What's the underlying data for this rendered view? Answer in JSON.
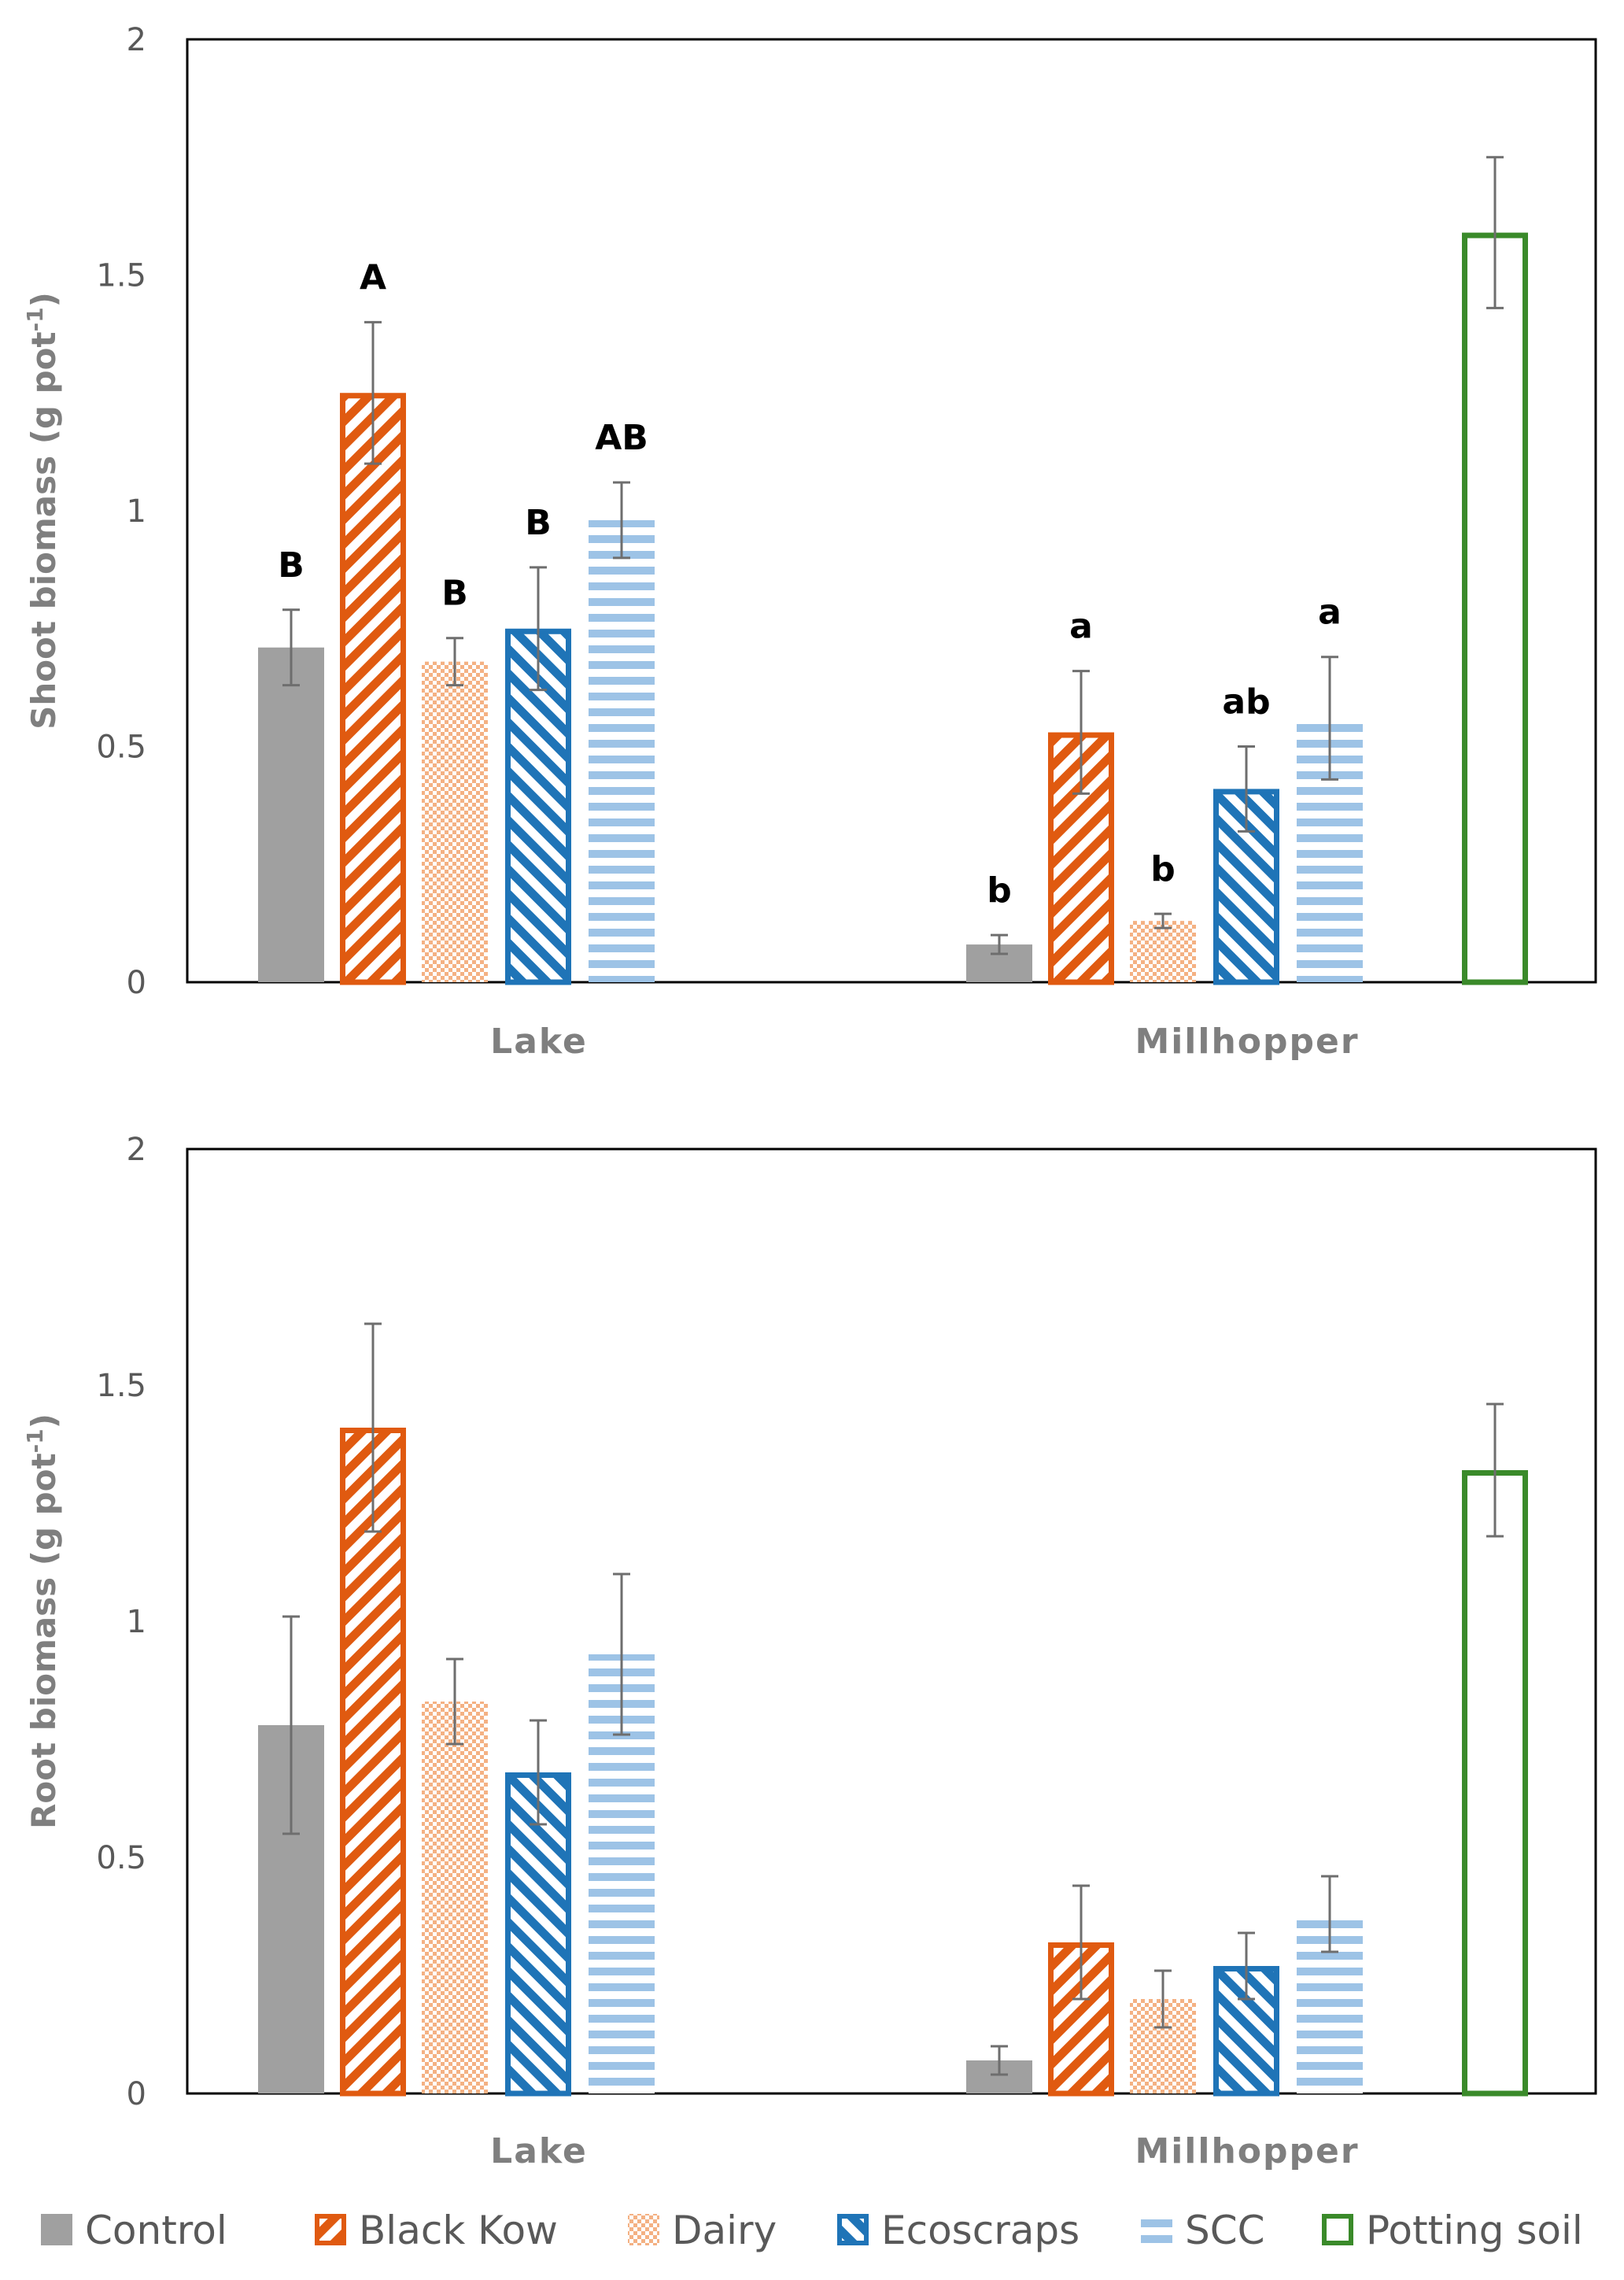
{
  "patterns": {
    "Control": "solid",
    "Black Kow": "diag-up",
    "Dairy": "checker",
    "Ecoscraps": "diag-down",
    "SCC": "horizontal",
    "Potting soil": "outline"
  },
  "series_colors": {
    "Control": "#a0a0a0",
    "Black Kow": "#e05a10",
    "Dairy": "#f4b183",
    "Ecoscraps": "#1f74b7",
    "SCC": "#9dc3e6",
    "Potting soil": "#3a8a2a"
  },
  "legend": [
    "Control",
    "Black Kow",
    "Dairy",
    "Ecoscraps",
    "SCC",
    "Potting soil"
  ],
  "chart_data": [
    {
      "type": "bar",
      "title": "",
      "ylabel_main": "Shoot biomass (g pot",
      "ylabel_sup": "-1",
      "ylabel_end": ")",
      "ylim": [
        0,
        2
      ],
      "yticks": [
        "0",
        "0.5",
        "1",
        "1.5",
        "2"
      ],
      "categories": [
        "Lake",
        "Millhopper"
      ],
      "series": [
        {
          "name": "Control",
          "values": [
            0.71,
            0.08
          ],
          "errors": [
            0.08,
            0.02
          ],
          "letters": [
            "B",
            "b"
          ]
        },
        {
          "name": "Black Kow",
          "values": [
            1.25,
            0.53
          ],
          "errors": [
            0.15,
            0.13
          ],
          "letters": [
            "A",
            "a"
          ]
        },
        {
          "name": "Dairy",
          "values": [
            0.68,
            0.13
          ],
          "errors": [
            0.05,
            0.015
          ],
          "letters": [
            "B",
            "b"
          ]
        },
        {
          "name": "Ecoscraps",
          "values": [
            0.75,
            0.41
          ],
          "errors": [
            0.13,
            0.09
          ],
          "letters": [
            "B",
            "ab"
          ]
        },
        {
          "name": "SCC",
          "values": [
            0.98,
            0.56
          ],
          "errors": [
            0.08,
            0.13
          ],
          "letters": [
            "AB",
            "a"
          ]
        },
        {
          "name": "Potting soil",
          "values": [
            null,
            1.59
          ],
          "errors": [
            null,
            0.16
          ],
          "letters": [
            "",
            ""
          ]
        }
      ]
    },
    {
      "type": "bar",
      "title": "",
      "ylabel_main": "Root biomass (g pot",
      "ylabel_sup": "-1",
      "ylabel_end": ")",
      "ylim": [
        0,
        2
      ],
      "yticks": [
        "0",
        "0.5",
        "1",
        "1.5",
        "2"
      ],
      "categories": [
        "Lake",
        "Millhopper"
      ],
      "series": [
        {
          "name": "Control",
          "values": [
            0.78,
            0.07
          ],
          "errors": [
            0.23,
            0.03
          ],
          "letters": [
            "",
            ""
          ]
        },
        {
          "name": "Black Kow",
          "values": [
            1.41,
            0.32
          ],
          "errors": [
            0.22,
            0.12
          ],
          "letters": [
            "",
            ""
          ]
        },
        {
          "name": "Dairy",
          "values": [
            0.83,
            0.2
          ],
          "errors": [
            0.09,
            0.06
          ],
          "letters": [
            "",
            ""
          ]
        },
        {
          "name": "Ecoscraps",
          "values": [
            0.68,
            0.27
          ],
          "errors": [
            0.11,
            0.07
          ],
          "letters": [
            "",
            ""
          ]
        },
        {
          "name": "SCC",
          "values": [
            0.93,
            0.38
          ],
          "errors": [
            0.17,
            0.08
          ],
          "letters": [
            "",
            ""
          ]
        },
        {
          "name": "Potting soil",
          "values": [
            null,
            1.32
          ],
          "errors": [
            null,
            0.14
          ],
          "letters": [
            "",
            ""
          ]
        }
      ]
    }
  ]
}
